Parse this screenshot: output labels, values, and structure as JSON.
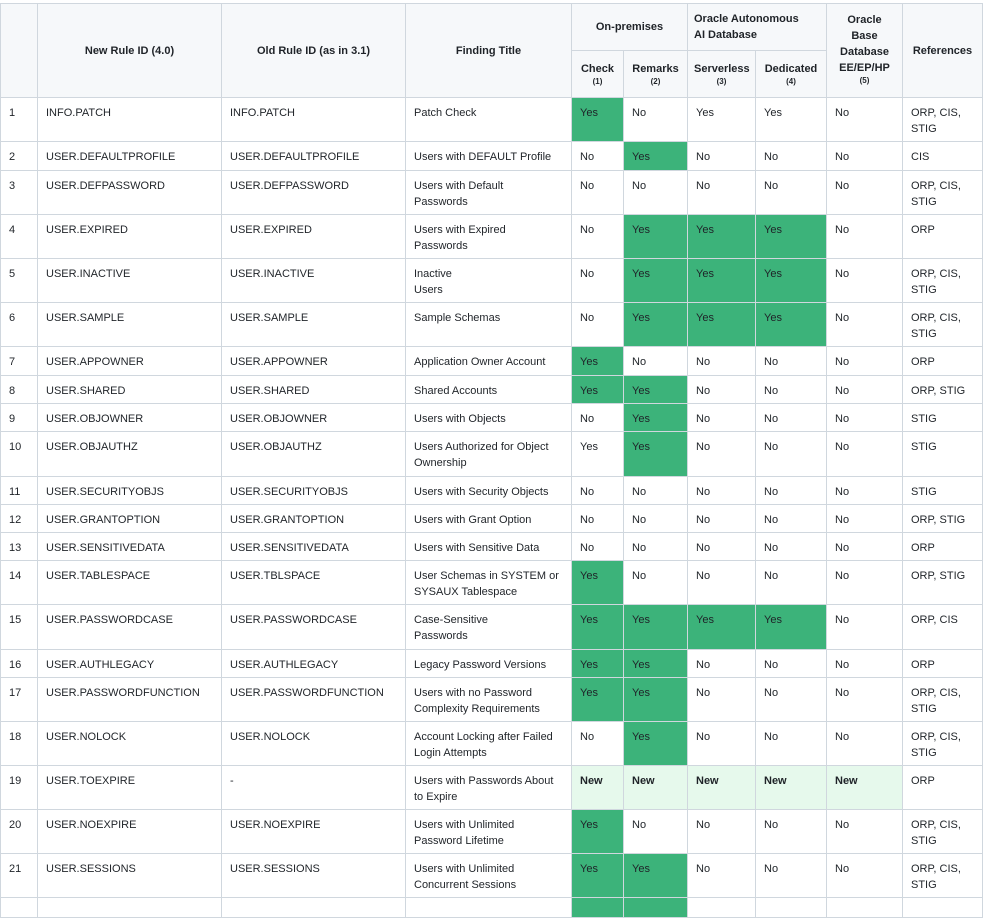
{
  "colors": {
    "highlight": "#3cb37a",
    "new_highlight": "#e6f9ec",
    "header_bg": "#f6f8fa",
    "border": "#d0d7de"
  },
  "header": {
    "new_rule": "New Rule ID (4.0)",
    "old_rule": "Old Rule ID (as in 3.1)",
    "title": "Finding Title",
    "onprem": "On-premises",
    "autonomous": "Oracle Autonomous\nAI Database",
    "base": "Oracle Base\nDatabase\nEE/EP/HP",
    "base_note": "(5)",
    "references": "References",
    "check": "Check",
    "check_note": "(1)",
    "remarks": "Remarks",
    "remarks_note": "(2)",
    "serverless": "Serverless",
    "serverless_note": "(3)",
    "dedicated": "Dedicated",
    "dedicated_note": "(4)"
  },
  "rows": [
    {
      "n": "1",
      "new": "INFO.PATCH",
      "old": "INFO.PATCH",
      "title": "Patch Check",
      "v": [
        "Yes",
        "No",
        "Yes",
        "Yes",
        "No"
      ],
      "hl": [
        1,
        0,
        0,
        0,
        0
      ],
      "refs": "ORP, CIS,\nSTIG"
    },
    {
      "n": "2",
      "new": "USER.DEFAULTPROFILE",
      "old": "USER.DEFAULTPROFILE",
      "title": "Users with DEFAULT Profile",
      "v": [
        "No",
        "Yes",
        "No",
        "No",
        "No"
      ],
      "hl": [
        0,
        1,
        0,
        0,
        0
      ],
      "refs": "CIS"
    },
    {
      "n": "3",
      "new": "USER.DEFPASSWORD",
      "old": "USER.DEFPASSWORD",
      "title": "Users with Default\nPasswords",
      "v": [
        "No",
        "No",
        "No",
        "No",
        "No"
      ],
      "hl": [
        0,
        0,
        0,
        0,
        0
      ],
      "refs": "ORP, CIS,\nSTIG"
    },
    {
      "n": "4",
      "new": "USER.EXPIRED",
      "old": "USER.EXPIRED",
      "title": "Users with Expired\nPasswords",
      "v": [
        "No",
        "Yes",
        "Yes",
        "Yes",
        "No"
      ],
      "hl": [
        0,
        1,
        1,
        1,
        0
      ],
      "refs": "ORP"
    },
    {
      "n": "5",
      "new": "USER.INACTIVE",
      "old": "USER.INACTIVE",
      "title": "Inactive\nUsers",
      "v": [
        "No",
        "Yes",
        "Yes",
        "Yes",
        "No"
      ],
      "hl": [
        0,
        1,
        1,
        1,
        0
      ],
      "refs": "ORP, CIS,\nSTIG"
    },
    {
      "n": "6",
      "new": "USER.SAMPLE",
      "old": "USER.SAMPLE",
      "title": "Sample Schemas",
      "v": [
        "No",
        "Yes",
        "Yes",
        "Yes",
        "No"
      ],
      "hl": [
        0,
        1,
        1,
        1,
        0
      ],
      "refs": "ORP, CIS,\nSTIG"
    },
    {
      "n": "7",
      "new": "USER.APPOWNER",
      "old": "USER.APPOWNER",
      "title": "Application Owner Account",
      "v": [
        "Yes",
        "No",
        "No",
        "No",
        "No"
      ],
      "hl": [
        1,
        0,
        0,
        0,
        0
      ],
      "refs": "ORP"
    },
    {
      "n": "8",
      "new": "USER.SHARED",
      "old": "USER.SHARED",
      "title": "Shared Accounts",
      "v": [
        "Yes",
        "Yes",
        "No",
        "No",
        "No"
      ],
      "hl": [
        1,
        1,
        0,
        0,
        0
      ],
      "refs": "ORP, STIG"
    },
    {
      "n": "9",
      "new": "USER.OBJOWNER",
      "old": "USER.OBJOWNER",
      "title": "Users with Objects",
      "v": [
        "No",
        "Yes",
        "No",
        "No",
        "No"
      ],
      "hl": [
        0,
        1,
        0,
        0,
        0
      ],
      "refs": "STIG"
    },
    {
      "n": "10",
      "new": "USER.OBJAUTHZ",
      "old": "USER.OBJAUTHZ",
      "title": "Users Authorized for Object\nOwnership",
      "v": [
        "Yes",
        "Yes",
        "No",
        "No",
        "No"
      ],
      "hl": [
        0,
        1,
        0,
        0,
        0
      ],
      "refs": "STIG"
    },
    {
      "n": "11",
      "new": "USER.SECURITYOBJS",
      "old": "USER.SECURITYOBJS",
      "title": "Users with Security Objects",
      "v": [
        "No",
        "No",
        "No",
        "No",
        "No"
      ],
      "hl": [
        0,
        0,
        0,
        0,
        0
      ],
      "refs": "STIG"
    },
    {
      "n": "12",
      "new": "USER.GRANTOPTION",
      "old": "USER.GRANTOPTION",
      "title": "Users with Grant Option",
      "v": [
        "No",
        "No",
        "No",
        "No",
        "No"
      ],
      "hl": [
        0,
        0,
        0,
        0,
        0
      ],
      "refs": "ORP, STIG"
    },
    {
      "n": "13",
      "new": "USER.SENSITIVEDATA",
      "old": "USER.SENSITIVEDATA",
      "title": "Users with Sensitive Data",
      "v": [
        "No",
        "No",
        "No",
        "No",
        "No"
      ],
      "hl": [
        0,
        0,
        0,
        0,
        0
      ],
      "refs": "ORP"
    },
    {
      "n": "14",
      "new": "USER.TABLESPACE",
      "old": "USER.TBLSPACE",
      "title": "User Schemas in SYSTEM or\nSYSAUX Tablespace",
      "v": [
        "Yes",
        "No",
        "No",
        "No",
        "No"
      ],
      "hl": [
        1,
        0,
        0,
        0,
        0
      ],
      "refs": "ORP, STIG"
    },
    {
      "n": "15",
      "new": "USER.PASSWORDCASE",
      "old": "USER.PASSWORDCASE",
      "title": "Case-Sensitive\nPasswords",
      "v": [
        "Yes",
        "Yes",
        "Yes",
        "Yes",
        "No"
      ],
      "hl": [
        1,
        1,
        1,
        1,
        0
      ],
      "refs": "ORP, CIS"
    },
    {
      "n": "16",
      "new": "USER.AUTHLEGACY",
      "old": "USER.AUTHLEGACY",
      "title": "Legacy Password Versions",
      "v": [
        "Yes",
        "Yes",
        "No",
        "No",
        "No"
      ],
      "hl": [
        1,
        1,
        0,
        0,
        0
      ],
      "refs": "ORP"
    },
    {
      "n": "17",
      "new": "USER.PASSWORDFUNCTION",
      "old": "USER.PASSWORDFUNCTION",
      "title": "Users with no Password\nComplexity Requirements",
      "v": [
        "Yes",
        "Yes",
        "No",
        "No",
        "No"
      ],
      "hl": [
        1,
        1,
        0,
        0,
        0
      ],
      "refs": "ORP, CIS,\nSTIG"
    },
    {
      "n": "18",
      "new": "USER.NOLOCK",
      "old": "USER.NOLOCK",
      "title": "Account Locking after Failed\nLogin Attempts",
      "v": [
        "No",
        "Yes",
        "No",
        "No",
        "No"
      ],
      "hl": [
        0,
        1,
        0,
        0,
        0
      ],
      "refs": "ORP, CIS,\nSTIG"
    },
    {
      "n": "19",
      "new": "USER.TOEXPIRE",
      "old": "-",
      "title": "Users with Passwords About\nto Expire",
      "v": [
        "New",
        "New",
        "New",
        "New",
        "New"
      ],
      "hl": [
        2,
        2,
        2,
        2,
        2
      ],
      "refs": "ORP"
    },
    {
      "n": "20",
      "new": "USER.NOEXPIRE",
      "old": "USER.NOEXPIRE",
      "title": "Users with Unlimited\nPassword Lifetime",
      "v": [
        "Yes",
        "No",
        "No",
        "No",
        "No"
      ],
      "hl": [
        1,
        0,
        0,
        0,
        0
      ],
      "refs": "ORP, CIS,\nSTIG"
    },
    {
      "n": "21",
      "new": "USER.SESSIONS",
      "old": "USER.SESSIONS",
      "title": "Users with Unlimited\nConcurrent Sessions",
      "v": [
        "Yes",
        "Yes",
        "No",
        "No",
        "No"
      ],
      "hl": [
        1,
        1,
        0,
        0,
        0
      ],
      "refs": "ORP, CIS,\nSTIG"
    }
  ],
  "partial_row": {
    "hl": [
      1,
      1,
      0,
      0,
      0
    ]
  }
}
